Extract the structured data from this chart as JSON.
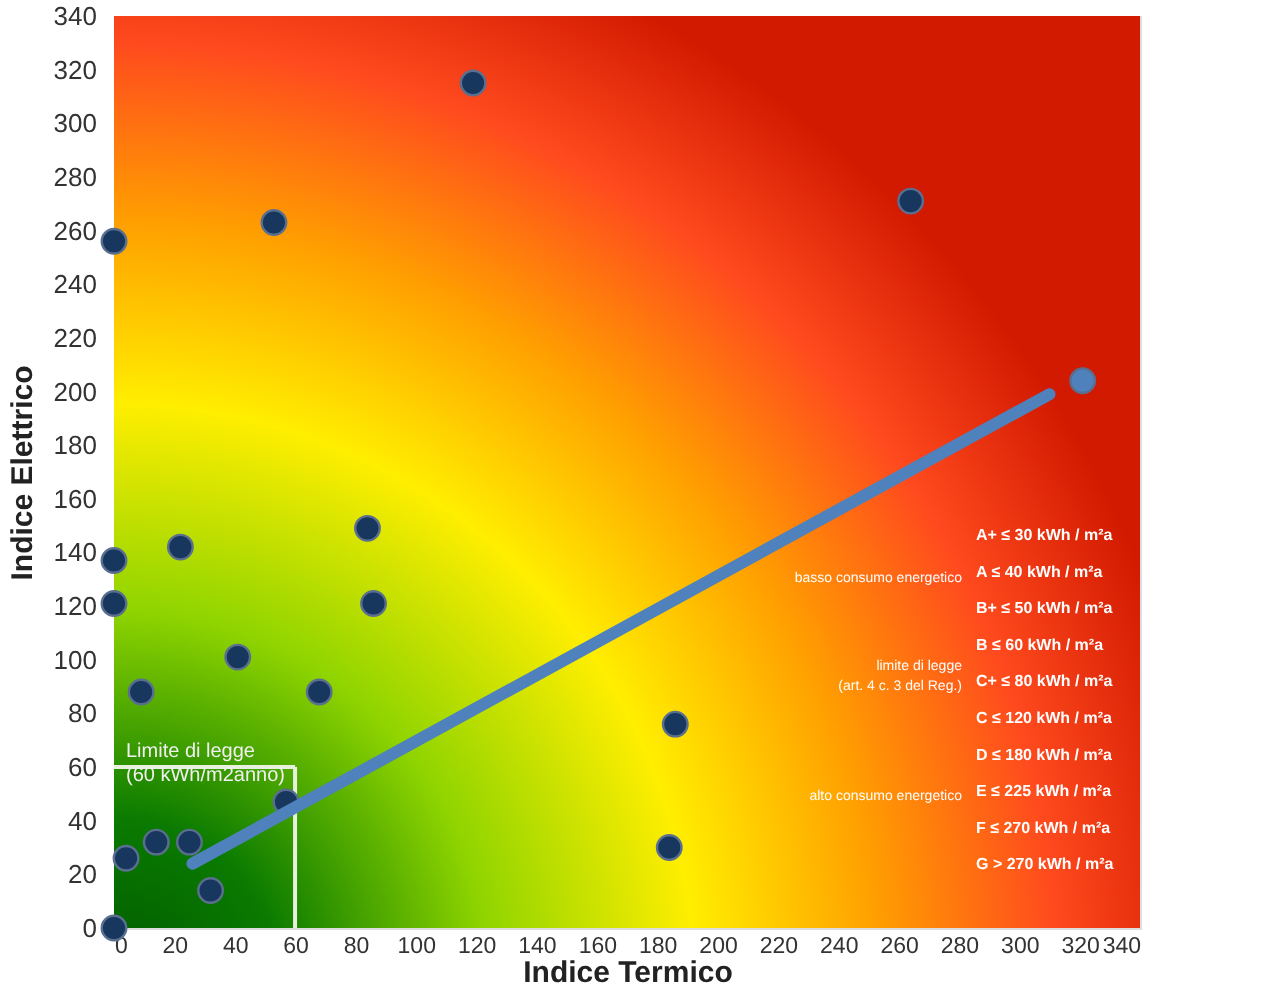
{
  "chart_data": {
    "type": "scatter",
    "xlabel": "Indice Termico",
    "ylabel": "Indice Elettrico",
    "xlim": [
      0,
      340
    ],
    "ylim": [
      0,
      340
    ],
    "xticks": [
      0,
      20,
      40,
      60,
      80,
      100,
      120,
      140,
      160,
      180,
      200,
      220,
      240,
      260,
      280,
      300,
      320,
      340
    ],
    "yticks": [
      0,
      20,
      40,
      60,
      80,
      100,
      120,
      140,
      160,
      180,
      200,
      220,
      240,
      260,
      280,
      300,
      320,
      340
    ],
    "marker": "circle",
    "series": [
      {
        "color": "#17375e",
        "x": [
          0,
          53,
          119,
          264,
          0,
          0,
          22,
          84,
          86,
          41,
          9,
          68,
          57,
          4,
          14,
          25,
          32,
          0,
          186,
          184
        ],
        "values": [
          256,
          263,
          315,
          271,
          137,
          121,
          142,
          149,
          121,
          101,
          88,
          88,
          47,
          26,
          32,
          32,
          14,
          0,
          76,
          30
        ]
      },
      {
        "color": "#4f81bd",
        "x": [
          321
        ],
        "values": [
          204
        ]
      },
      {
        "type": "line",
        "color": "#4f81bd",
        "marker": "none",
        "x": [
          26,
          310
        ],
        "values": [
          24,
          199
        ]
      }
    ],
    "ref_lines": [
      {
        "axis": "x",
        "value": 60,
        "color": "#e8f0e0"
      },
      {
        "axis": "y",
        "value": 60,
        "color": "#e8f0e0",
        "label": "Limite di legge\n(60 kWh/m2anno)"
      }
    ],
    "annotations": [
      "A+ ≤ 30 kWh / m²a",
      "A  ≤ 40 kWh / m²a",
      "B+ ≤ 50 kWh / m²a",
      "B  ≤ 60 kWh / m²a",
      "C+ ≤ 80 kWh / m²a",
      "C  ≤ 120 kWh / m²a",
      "D  ≤ 180 kWh / m²a",
      "E  ≤ 225 kWh / m²a",
      "F  ≤ 270 kWh / m²a",
      "G  > 270 kWh / m²a",
      "basso consumo energetico",
      "limite di legge",
      "(art. 4 c. 3 del Reg.)",
      "alto consumo energetico"
    ]
  }
}
